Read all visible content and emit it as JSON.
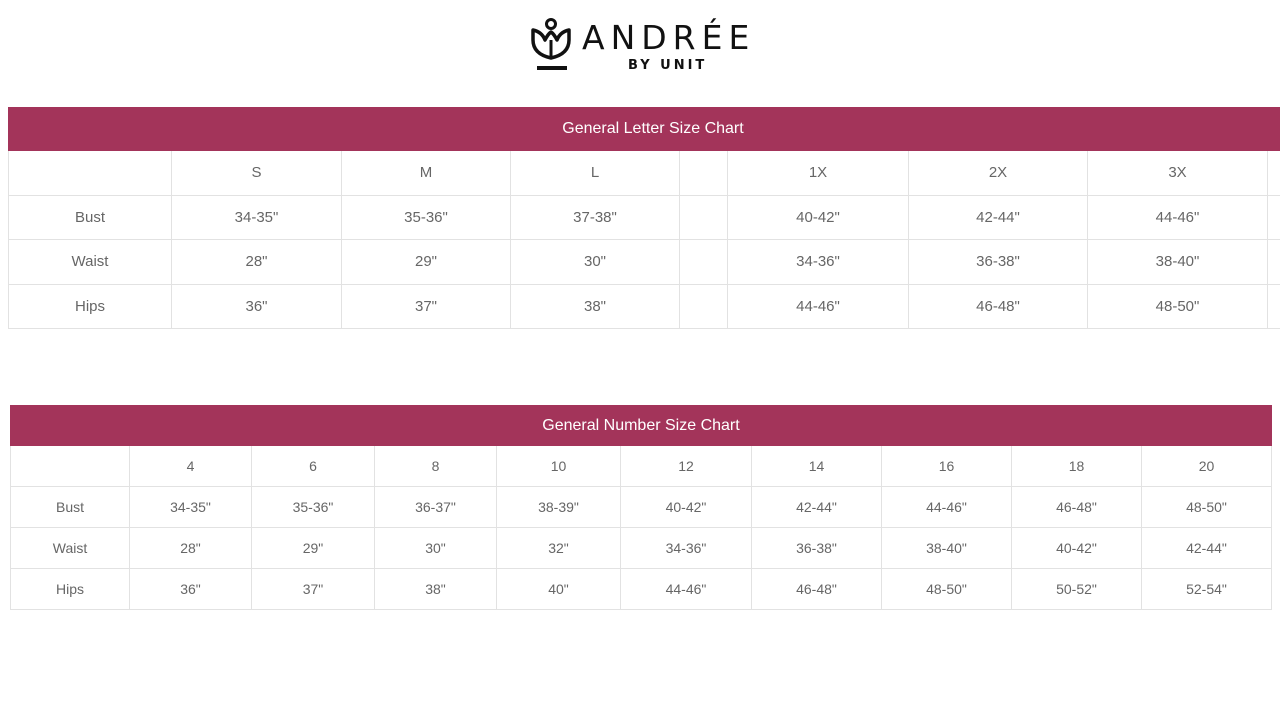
{
  "brand": {
    "name": "ANDRÉE",
    "tagline": "BY UNIT"
  },
  "letter_chart": {
    "title": "General Letter Size Chart",
    "columns": [
      "",
      "S",
      "M",
      "L",
      "",
      "1X",
      "2X",
      "3X",
      ""
    ],
    "rows": [
      {
        "label": "Bust",
        "values": [
          "34-35\"",
          "35-36\"",
          "37-38\"",
          "",
          "40-42\"",
          "42-44\"",
          "44-46\"",
          ""
        ]
      },
      {
        "label": "Waist",
        "values": [
          "28\"",
          "29\"",
          "30\"",
          "",
          "34-36\"",
          "36-38\"",
          "38-40\"",
          ""
        ]
      },
      {
        "label": "Hips",
        "values": [
          "36\"",
          "37\"",
          "38\"",
          "",
          "44-46\"",
          "46-48\"",
          "48-50\"",
          ""
        ]
      }
    ]
  },
  "number_chart": {
    "title": "General Number Size Chart",
    "columns": [
      "",
      "4",
      "6",
      "8",
      "10",
      "12",
      "14",
      "16",
      "18",
      "20"
    ],
    "rows": [
      {
        "label": "Bust",
        "values": [
          "34-35\"",
          "35-36\"",
          "36-37\"",
          "38-39\"",
          "40-42\"",
          "42-44\"",
          "44-46\"",
          "46-48\"",
          "48-50\""
        ]
      },
      {
        "label": "Waist",
        "values": [
          "28\"",
          "29\"",
          "30\"",
          "32\"",
          "34-36\"",
          "36-38\"",
          "38-40\"",
          "40-42\"",
          "42-44\""
        ]
      },
      {
        "label": "Hips",
        "values": [
          "36\"",
          "37\"",
          "38\"",
          "40\"",
          "44-46\"",
          "46-48\"",
          "48-50\"",
          "50-52\"",
          "52-54\""
        ]
      }
    ]
  },
  "colors": {
    "accent": "#a3345a",
    "text": "#666666",
    "border": "#e2e2e2"
  }
}
